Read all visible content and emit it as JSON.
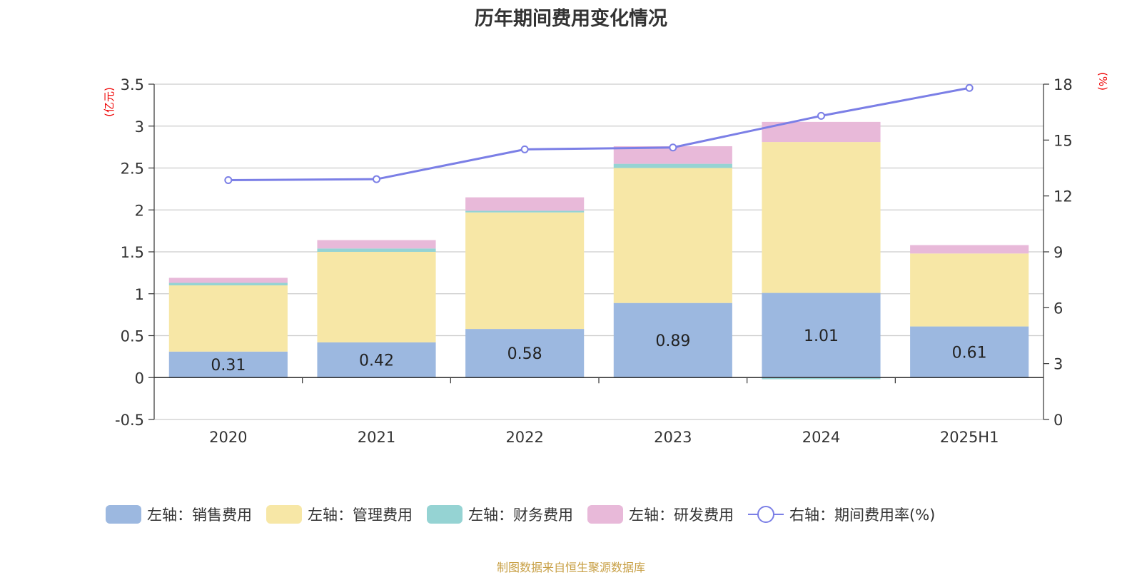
{
  "title": "历年期间费用变化情况",
  "source": "制图数据来自恒生聚源数据库",
  "chart_data": {
    "type": "bar",
    "stacked": true,
    "title": "历年期间费用变化情况",
    "categories": [
      "2020",
      "2021",
      "2022",
      "2023",
      "2024",
      "2025H1"
    ],
    "y_left": {
      "unit": "(亿元)",
      "min": -0.5,
      "max": 3.5,
      "ticks": [
        "-0.5",
        "0",
        "0.5",
        "1",
        "1.5",
        "2",
        "2.5",
        "3",
        "3.5"
      ]
    },
    "y_right": {
      "unit": "(%)",
      "min": 0,
      "max": 18,
      "ticks": [
        "0",
        "3",
        "6",
        "9",
        "12",
        "15",
        "18"
      ]
    },
    "grid": true,
    "legend_position": "bottom",
    "series": [
      {
        "name": "左轴：销售费用",
        "axis": "left",
        "type": "bar",
        "color": "#9cb8e0",
        "values": [
          0.31,
          0.42,
          0.58,
          0.89,
          1.01,
          0.61
        ],
        "labels": [
          "0.31",
          "0.42",
          "0.58",
          "0.89",
          "1.01",
          "0.61"
        ]
      },
      {
        "name": "左轴：管理费用",
        "axis": "left",
        "type": "bar",
        "color": "#f7e7a6",
        "values": [
          0.79,
          1.08,
          1.39,
          1.61,
          1.8,
          0.87
        ]
      },
      {
        "name": "左轴：财务费用",
        "axis": "left",
        "type": "bar",
        "color": "#95d3d3",
        "values": [
          0.03,
          0.04,
          0.02,
          0.05,
          -0.02,
          0.0
        ]
      },
      {
        "name": "左轴：研发费用",
        "axis": "left",
        "type": "bar",
        "color": "#e8b9d9",
        "values": [
          0.06,
          0.1,
          0.16,
          0.21,
          0.24,
          0.1
        ]
      },
      {
        "name": "右轴：期间费用率(%)",
        "axis": "right",
        "type": "line",
        "color": "#7b7fe6",
        "values": [
          12.85,
          12.9,
          14.5,
          14.6,
          16.3,
          17.8
        ]
      }
    ]
  }
}
